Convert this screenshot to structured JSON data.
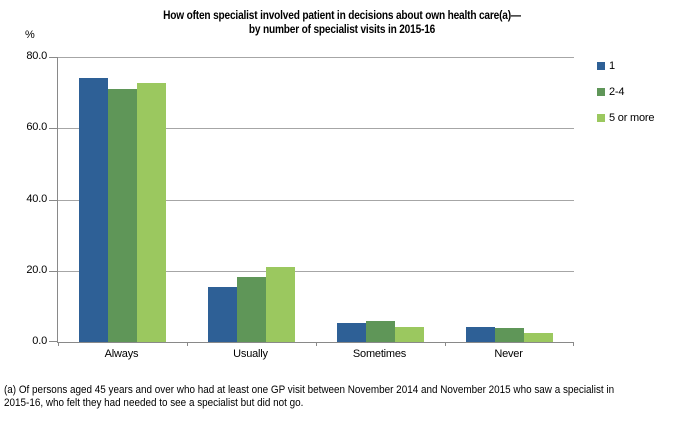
{
  "title": {
    "line1": "How often specialist involved patient in decisions about own health care(a)—",
    "line2": "by number of specialist visits in 2015-16"
  },
  "chart_data": {
    "type": "bar",
    "title": "How often specialist involved patient in decisions about own health care(a)—by number of specialist visits in 2015-16",
    "categories": [
      "Always",
      "Usually",
      "Sometimes",
      "Never"
    ],
    "series": [
      {
        "name": "1",
        "color": "#2E6096",
        "values": [
          74.1,
          15.4,
          5.2,
          4.1
        ]
      },
      {
        "name": "2-4",
        "color": "#5F9658",
        "values": [
          71.0,
          18.2,
          6.0,
          4.0
        ]
      },
      {
        "name": "5 or more",
        "color": "#9BC85F",
        "values": [
          72.6,
          21.0,
          4.1,
          2.4
        ]
      }
    ],
    "ylabel": "%",
    "ylim": [
      0,
      80
    ],
    "yticks": [
      "0.0",
      "20.0",
      "40.0",
      "60.0",
      "80.0"
    ],
    "grid": true,
    "legend_position": "right"
  },
  "footnote": {
    "line1": "(a) Of persons aged 45 years and over who had at least one GP visit between November 2014 and November 2015 who saw a specialist in",
    "line2": "2015-16, who felt they had needed to see a specialist but did not go."
  },
  "colors": {
    "axis": "#898989",
    "gridline": "#A6A6A6",
    "text": "#000000"
  }
}
